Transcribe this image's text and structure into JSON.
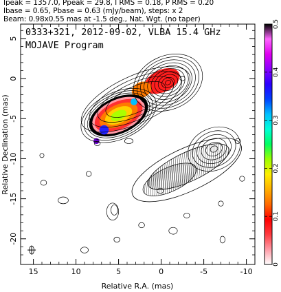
{
  "header": {
    "line1": "Ipeak = 1357.0, Ppeak = 29.8, I RMS = 0.18, P RMS = 0.20",
    "line2": "Ibase = 0.65, Pbase = 0.63 (mJy/beam), steps: x 2",
    "line3": "Beam: 0.98x0.55 mas at -1.5 deg., Nat. Wgt. (no taper)"
  },
  "plot": {
    "title": "0333+321, 2012-09-02, VLBA 15.4 GHz",
    "program": "MOJAVE Program"
  },
  "chart_data": {
    "type": "heatmap",
    "xlabel": "Relative R.A. (mas)",
    "ylabel": "Relative Declination (mas)",
    "xlim": [
      16.5,
      -11.0
    ],
    "ylim": [
      -23.2,
      6.8
    ],
    "x_ticks": [
      "15",
      "10",
      "5",
      "0",
      "-5",
      "-10"
    ],
    "x_tick_values": [
      15,
      10,
      5,
      0,
      -5,
      -10
    ],
    "y_ticks": [
      "5",
      "0",
      "-5",
      "-10",
      "-15",
      "-20"
    ],
    "y_tick_values": [
      5,
      0,
      -5,
      -10,
      -15,
      -20
    ],
    "colorbar": {
      "tick_labels": [
        "0",
        "0.1",
        "0.2",
        "0.3",
        "0.4",
        "0.5"
      ],
      "tick_values": [
        0,
        0.1,
        0.2,
        0.3,
        0.4,
        0.5
      ],
      "range": [
        0,
        0.5
      ],
      "stops": [
        "#ffffff",
        "#ff9aa6",
        "#ff3b40",
        "#ff0000",
        "#ff6a00",
        "#ffb000",
        "#ffee00",
        "#9bff00",
        "#00ff60",
        "#00ffd8",
        "#00bfff",
        "#0040ff",
        "#2a00ff",
        "#8a00ff",
        "#e000f0",
        "#ff66ff",
        "#000000"
      ]
    },
    "beam": {
      "major_mas": 0.98,
      "minor_mas": 0.55,
      "pa_deg": -1.5
    },
    "left_panel": {
      "core": {
        "x": -0.8,
        "y": -0.5
      },
      "contour_levels": 10,
      "jet_axis_deg": 25
    },
    "right_panel": {
      "core": {
        "x": -6.2,
        "y": -8.8
      },
      "contour_levels": 6
    }
  }
}
